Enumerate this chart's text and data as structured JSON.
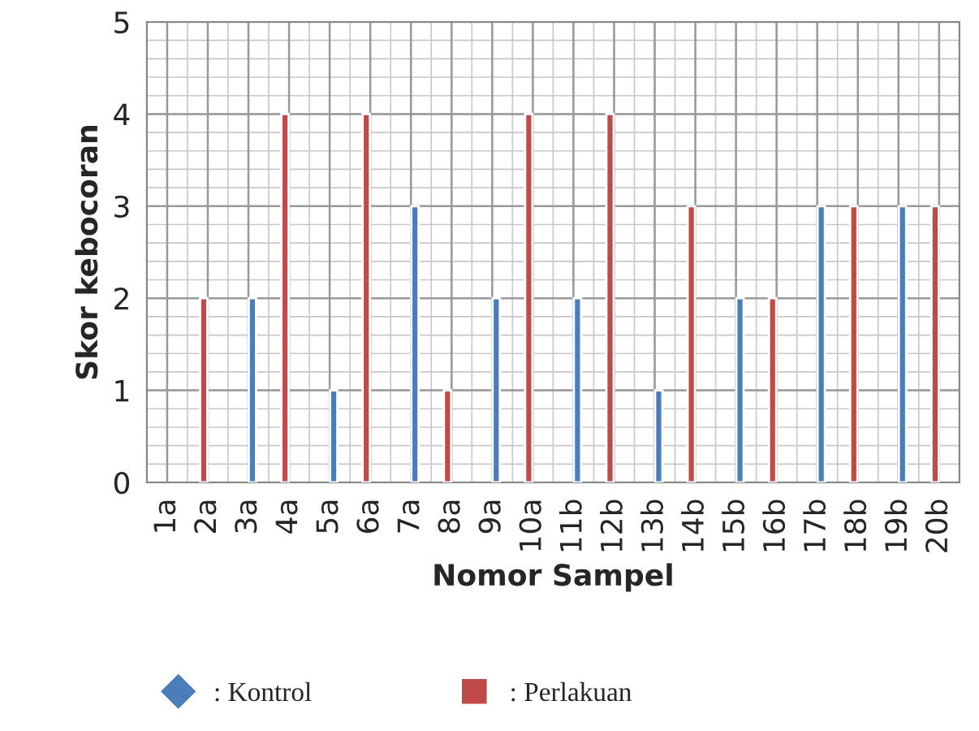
{
  "chart_data": {
    "type": "bar",
    "xlabel": "Nomor Sampel",
    "ylabel": "Skor kebocoran",
    "categories": [
      "1a",
      "2a",
      "3a",
      "4a",
      "5a",
      "6a",
      "7a",
      "8a",
      "9a",
      "10a",
      "11b",
      "12b",
      "13b",
      "14b",
      "15b",
      "16b",
      "17b",
      "18b",
      "19b",
      "20b"
    ],
    "series": [
      {
        "name": ": Kontrol",
        "color": "#4a7ebb",
        "marker": "diamond",
        "values": [
          null,
          null,
          2,
          null,
          1,
          null,
          3,
          null,
          2,
          null,
          2,
          null,
          1,
          null,
          2,
          null,
          3,
          null,
          3,
          null
        ]
      },
      {
        "name": ": Perlakuan",
        "color": "#be4b48",
        "marker": "square",
        "values": [
          null,
          2,
          null,
          4,
          null,
          4,
          null,
          1,
          null,
          4,
          null,
          4,
          null,
          3,
          null,
          2,
          null,
          3,
          null,
          3
        ]
      }
    ],
    "ylim": [
      0,
      5
    ],
    "yticks": [
      0,
      1,
      2,
      3,
      4,
      5
    ],
    "grid": true,
    "legend": "bottom"
  }
}
